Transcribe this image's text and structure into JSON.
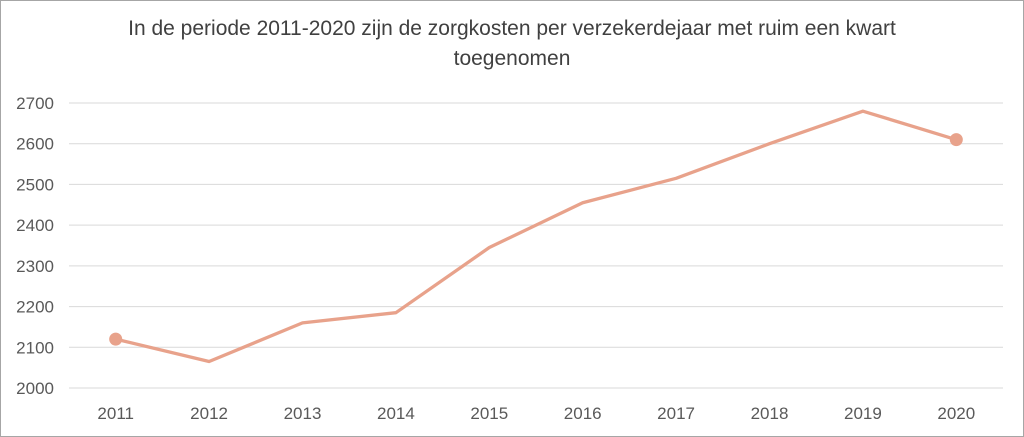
{
  "frame": {
    "background": "#ffffff",
    "border_color": "#a6a6a6"
  },
  "chart_data": {
    "type": "line",
    "title": "In de periode 2011-2020 zijn de zorgkosten per verzekerdejaar met ruim een kwart toegenomen",
    "categories": [
      "2011",
      "2012",
      "2013",
      "2014",
      "2015",
      "2016",
      "2017",
      "2018",
      "2019",
      "2020"
    ],
    "values": [
      2120,
      2065,
      2160,
      2185,
      2345,
      2455,
      2515,
      2600,
      2680,
      2610
    ],
    "xlabel": "",
    "ylabel": "",
    "ylim": [
      2000,
      2700
    ],
    "ytick_step": 100,
    "yticks": [
      "2000",
      "2100",
      "2200",
      "2300",
      "2400",
      "2500",
      "2600",
      "2700"
    ],
    "grid": "horizontal",
    "legend": "none",
    "markers": "first_and_last_only",
    "colors": {
      "line": "#e8a28b",
      "marker": "#e8a28b",
      "gridline": "#d9d9d9",
      "tick_label": "#595959",
      "title": "#404040"
    }
  }
}
